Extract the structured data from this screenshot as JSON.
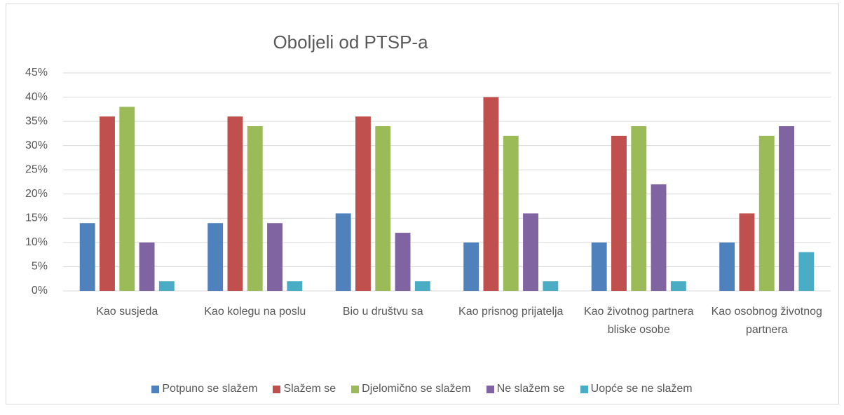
{
  "chart_data": {
    "type": "bar",
    "title": "Oboljeli od PTSP-a",
    "categories": [
      "Kao susjeda",
      "Kao kolegu na poslu",
      "Bio u društvu sa",
      "Kao prisnog prijatelja",
      "Kao životnog partnera bliske osobe",
      "Kao osobnog životnog partnera"
    ],
    "series": [
      {
        "name": "Potpuno se slažem",
        "color": "#4f81bd",
        "values": [
          14,
          14,
          16,
          10,
          10,
          10
        ]
      },
      {
        "name": "Slažem se",
        "color": "#c0504d",
        "values": [
          36,
          36,
          36,
          40,
          32,
          16
        ]
      },
      {
        "name": "Djelomično se slažem",
        "color": "#9bbb59",
        "values": [
          38,
          34,
          34,
          32,
          34,
          32
        ]
      },
      {
        "name": "Ne slažem se",
        "color": "#8064a2",
        "values": [
          10,
          14,
          12,
          16,
          22,
          34
        ]
      },
      {
        "name": "Uopće se ne slažem",
        "color": "#4bacc6",
        "values": [
          2,
          2,
          2,
          2,
          2,
          8
        ]
      }
    ],
    "ylim": [
      0,
      45
    ],
    "yticks": [
      {
        "value": 0,
        "label": "0%"
      },
      {
        "value": 5,
        "label": "5%"
      },
      {
        "value": 10,
        "label": "10%"
      },
      {
        "value": 15,
        "label": "15%"
      },
      {
        "value": 20,
        "label": "20%"
      },
      {
        "value": 25,
        "label": "25%"
      },
      {
        "value": 30,
        "label": "30%"
      },
      {
        "value": 35,
        "label": "35%"
      },
      {
        "value": 40,
        "label": "40%"
      },
      {
        "value": 45,
        "label": "45%"
      }
    ],
    "grid": true,
    "legend": "bottom"
  }
}
